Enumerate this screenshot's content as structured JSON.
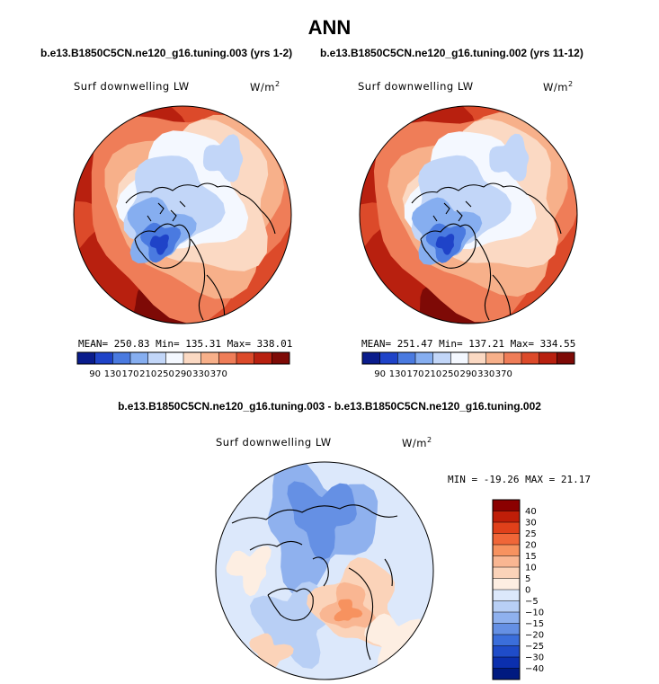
{
  "page": {
    "season": "ANN",
    "case_test": "b.e13.B1850C5CN.ne120_g16.tuning.003 (yrs 1-2)",
    "case_ctrl": "b.e13.B1850C5CN.ne120_g16.tuning.002 (yrs 11-12)",
    "diff_title": "b.e13.B1850C5CN.ne120_g16.tuning.003 - b.e13.B1850C5CN.ne120_g16.tuning.002"
  },
  "chart_data": [
    {
      "type": "heatmap",
      "projection": "north-polar-stereographic",
      "variable": "Surf downwelling LW",
      "units_base": "W/m",
      "units_exp": "2",
      "stats": "MEAN= 250.83  Min= 135.31  Max= 338.01",
      "mean": 250.83,
      "min": 135.31,
      "max": 338.01,
      "contour_levels": [
        90,
        130,
        170,
        210,
        250,
        290,
        330,
        370
      ],
      "tick_labels": [
        "90",
        "130",
        "170",
        "210",
        "250",
        "290",
        "330",
        "370"
      ],
      "colors": [
        "#0a1c8c",
        "#1f43c8",
        "#4a7ae0",
        "#86aef0",
        "#c2d6f8",
        "#f4f8ff",
        "#fbd9c3",
        "#f7b08a",
        "#ef7d58",
        "#dc4a2a",
        "#b8200f",
        "#7e0a06"
      ]
    },
    {
      "type": "heatmap",
      "projection": "north-polar-stereographic",
      "variable": "Surf downwelling LW",
      "units_base": "W/m",
      "units_exp": "2",
      "stats": "MEAN= 251.47  Min= 137.21  Max= 334.55",
      "mean": 251.47,
      "min": 137.21,
      "max": 334.55,
      "contour_levels": [
        90,
        130,
        170,
        210,
        250,
        290,
        330,
        370
      ],
      "tick_labels": [
        "90",
        "130",
        "170",
        "210",
        "250",
        "290",
        "330",
        "370"
      ],
      "colors": [
        "#0a1c8c",
        "#1f43c8",
        "#4a7ae0",
        "#86aef0",
        "#c2d6f8",
        "#f4f8ff",
        "#fbd9c3",
        "#f7b08a",
        "#ef7d58",
        "#dc4a2a",
        "#b8200f",
        "#7e0a06"
      ]
    },
    {
      "type": "heatmap",
      "projection": "north-polar-stereographic",
      "variable": "Surf downwelling LW",
      "units_base": "W/m",
      "units_exp": "2",
      "stats": "MIN = -19.26 MAX =  21.17",
      "min": -19.26,
      "max": 21.17,
      "contour_levels": [
        40,
        30,
        25,
        20,
        15,
        10,
        5,
        0,
        -5,
        -10,
        -15,
        -20,
        -25,
        -30,
        -40
      ],
      "tick_labels": [
        "40",
        "30",
        "25",
        "20",
        "15",
        "10",
        "5",
        "0",
        "−5",
        "−10",
        "−15",
        "−20",
        "−25",
        "−30",
        "−40"
      ],
      "colors": [
        "#8b0000",
        "#bf1e08",
        "#e0401a",
        "#f06638",
        "#f7925f",
        "#f9b692",
        "#fbd3b9",
        "#fdeee2",
        "#dce8fb",
        "#b8cff5",
        "#8fb1ee",
        "#6590e4",
        "#3b6edb",
        "#1f4cc9",
        "#0b2fae",
        "#001a80"
      ]
    }
  ]
}
